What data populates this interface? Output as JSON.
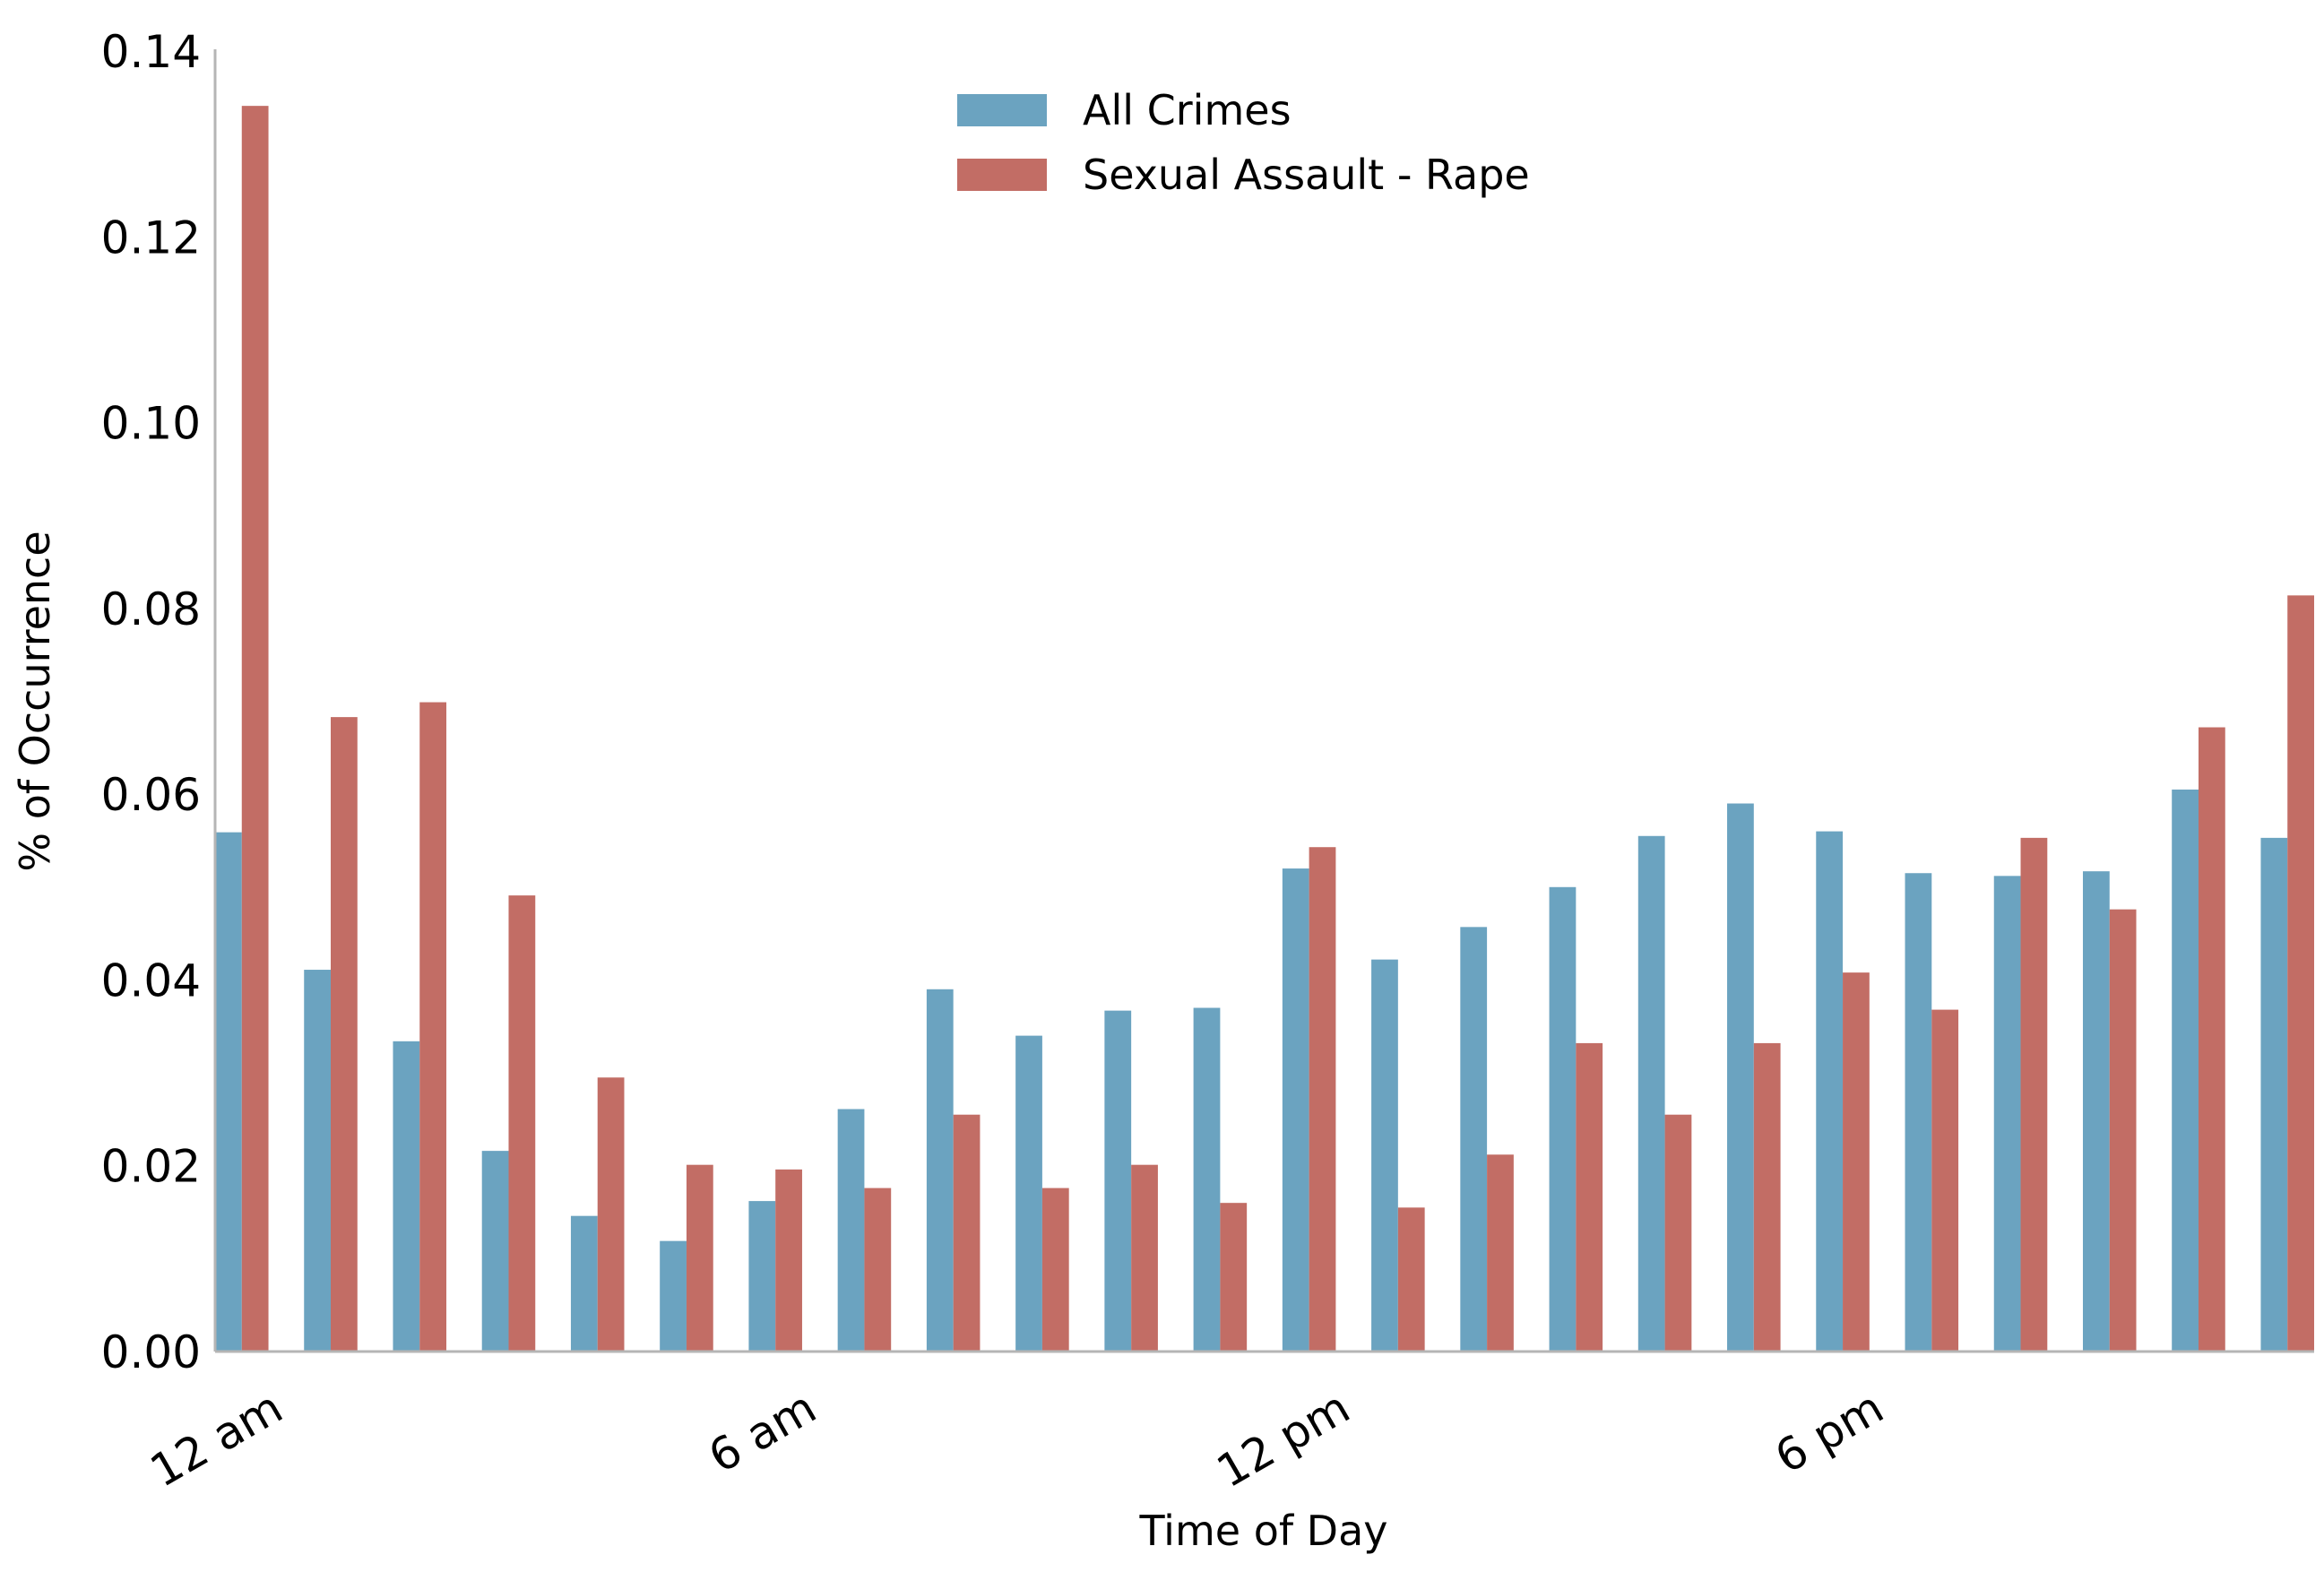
{
  "chart_data": {
    "type": "bar",
    "xlabel": "Time of Day",
    "ylabel": "% of Occurrence",
    "ylim": [
      0,
      0.14
    ],
    "yticks": [
      "0.00",
      "0.02",
      "0.04",
      "0.06",
      "0.08",
      "0.10",
      "0.12",
      "0.14"
    ],
    "x_hours": [
      0,
      1,
      2,
      3,
      4,
      5,
      6,
      7,
      8,
      9,
      10,
      11,
      12,
      13,
      14,
      15,
      16,
      17,
      18,
      19,
      20,
      21,
      22,
      23
    ],
    "xtick_labels": [
      {
        "hour": 0,
        "label": "12 am"
      },
      {
        "hour": 6,
        "label": "6 am"
      },
      {
        "hour": 12,
        "label": "12 pm"
      },
      {
        "hour": 18,
        "label": "6 pm"
      }
    ],
    "legend_position": "top-center",
    "grid": false,
    "series": [
      {
        "name": "All Crimes",
        "color": "#6ba3c0",
        "values": [
          0.0559,
          0.0411,
          0.0334,
          0.0216,
          0.0146,
          0.0119,
          0.0162,
          0.0261,
          0.039,
          0.034,
          0.0367,
          0.037,
          0.052,
          0.0422,
          0.0457,
          0.05,
          0.0555,
          0.059,
          0.056,
          0.0515,
          0.0512,
          0.0517,
          0.0605,
          0.0553
        ]
      },
      {
        "name": "Sexual Assault - Rape",
        "color": "#c26d65",
        "values": [
          0.1341,
          0.0683,
          0.0699,
          0.0491,
          0.0295,
          0.0201,
          0.0196,
          0.0176,
          0.0255,
          0.0176,
          0.0201,
          0.016,
          0.0543,
          0.0155,
          0.0212,
          0.0332,
          0.0255,
          0.0332,
          0.0408,
          0.0368,
          0.0553,
          0.0476,
          0.0672,
          0.0814
        ]
      }
    ]
  }
}
